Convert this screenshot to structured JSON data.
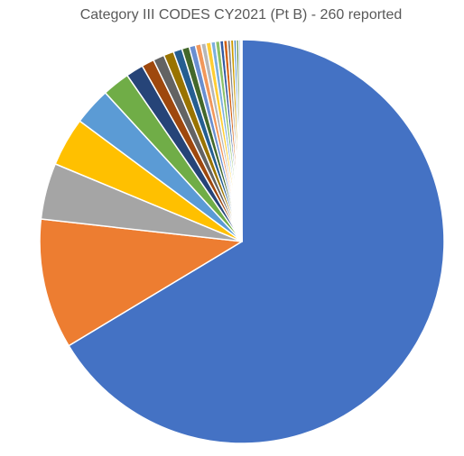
{
  "chart_data": {
    "type": "pie",
    "title": "Category III CODES CY2021 (Pt B) - 260 reported",
    "values": [
      66.3,
      10.4,
      4.5,
      3.9,
      3.0,
      2.2,
      1.4,
      1.0,
      0.9,
      0.8,
      0.7,
      0.6,
      0.5,
      0.45,
      0.4,
      0.4,
      0.35,
      0.35,
      0.3,
      0.3,
      0.25,
      0.25,
      0.2,
      0.2,
      0.15,
      0.1
    ],
    "colors": [
      "#4472C4",
      "#ED7D31",
      "#A5A5A5",
      "#FFC000",
      "#5B9BD5",
      "#70AD47",
      "#264478",
      "#9E480E",
      "#636363",
      "#997300",
      "#255E91",
      "#43682B",
      "#698ED0",
      "#F1975A",
      "#B7B7B7",
      "#FFCD33",
      "#7CAFDD",
      "#8CC168",
      "#335AA1",
      "#D26012",
      "#848484",
      "#CC9A00",
      "#3C80C2",
      "#5A8A39",
      "#8FAADC",
      "#F4B183"
    ]
  }
}
